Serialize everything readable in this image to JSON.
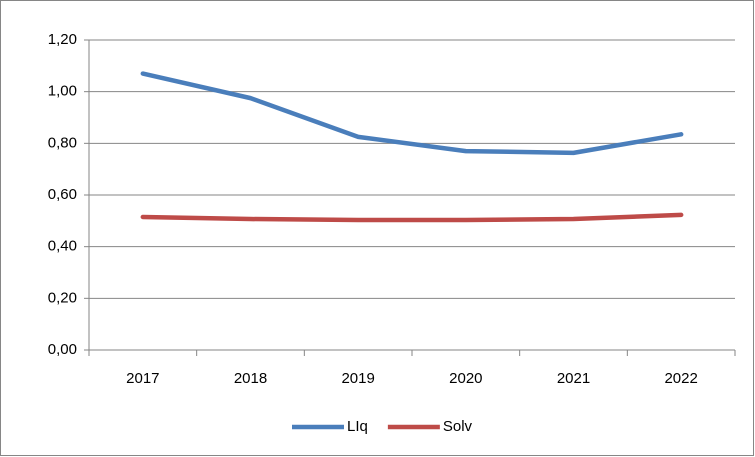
{
  "chart_data": {
    "type": "line",
    "categories": [
      "2017",
      "2018",
      "2019",
      "2020",
      "2021",
      "2022"
    ],
    "series": [
      {
        "name": "LIq",
        "color": "#4a7ebb",
        "values": [
          1.07,
          0.975,
          0.825,
          0.77,
          0.763,
          0.835
        ]
      },
      {
        "name": "Solv",
        "color": "#be4b48",
        "values": [
          0.515,
          0.507,
          0.503,
          0.503,
          0.507,
          0.523
        ]
      }
    ],
    "ylim": [
      0,
      1.2
    ],
    "yticks": [
      {
        "value": 0,
        "label": "0,00"
      },
      {
        "value": 0.2,
        "label": "0,20"
      },
      {
        "value": 0.4,
        "label": "0,40"
      },
      {
        "value": 0.6,
        "label": "0,60"
      },
      {
        "value": 0.8,
        "label": "0,80"
      },
      {
        "value": 1.0,
        "label": "1,00"
      },
      {
        "value": 1.2,
        "label": "1,20"
      }
    ],
    "grid": true,
    "legend": "bottom"
  }
}
